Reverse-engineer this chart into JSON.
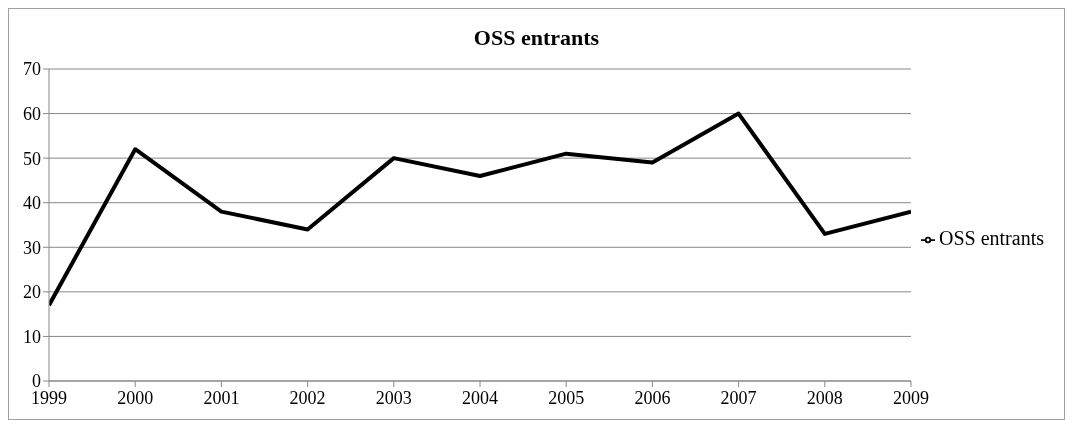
{
  "chart_data": {
    "type": "line",
    "title": "OSS entrants",
    "x": [
      1999,
      2000,
      2001,
      2002,
      2003,
      2004,
      2005,
      2006,
      2007,
      2008,
      2009
    ],
    "series": [
      {
        "name": "OSS entrants",
        "color": "#000000",
        "values": [
          17,
          52,
          38,
          34,
          50,
          46,
          51,
          49,
          60,
          33,
          38
        ]
      }
    ],
    "xlim": [
      1999,
      2009
    ],
    "xticks": [
      1999,
      2000,
      2001,
      2002,
      2003,
      2004,
      2005,
      2006,
      2007,
      2008,
      2009
    ],
    "ylim": [
      0,
      70
    ],
    "yticks": [
      0,
      10,
      20,
      30,
      40,
      50,
      60,
      70
    ],
    "grid": "y",
    "legend": "right",
    "marker": "none",
    "line_style": "solid"
  }
}
